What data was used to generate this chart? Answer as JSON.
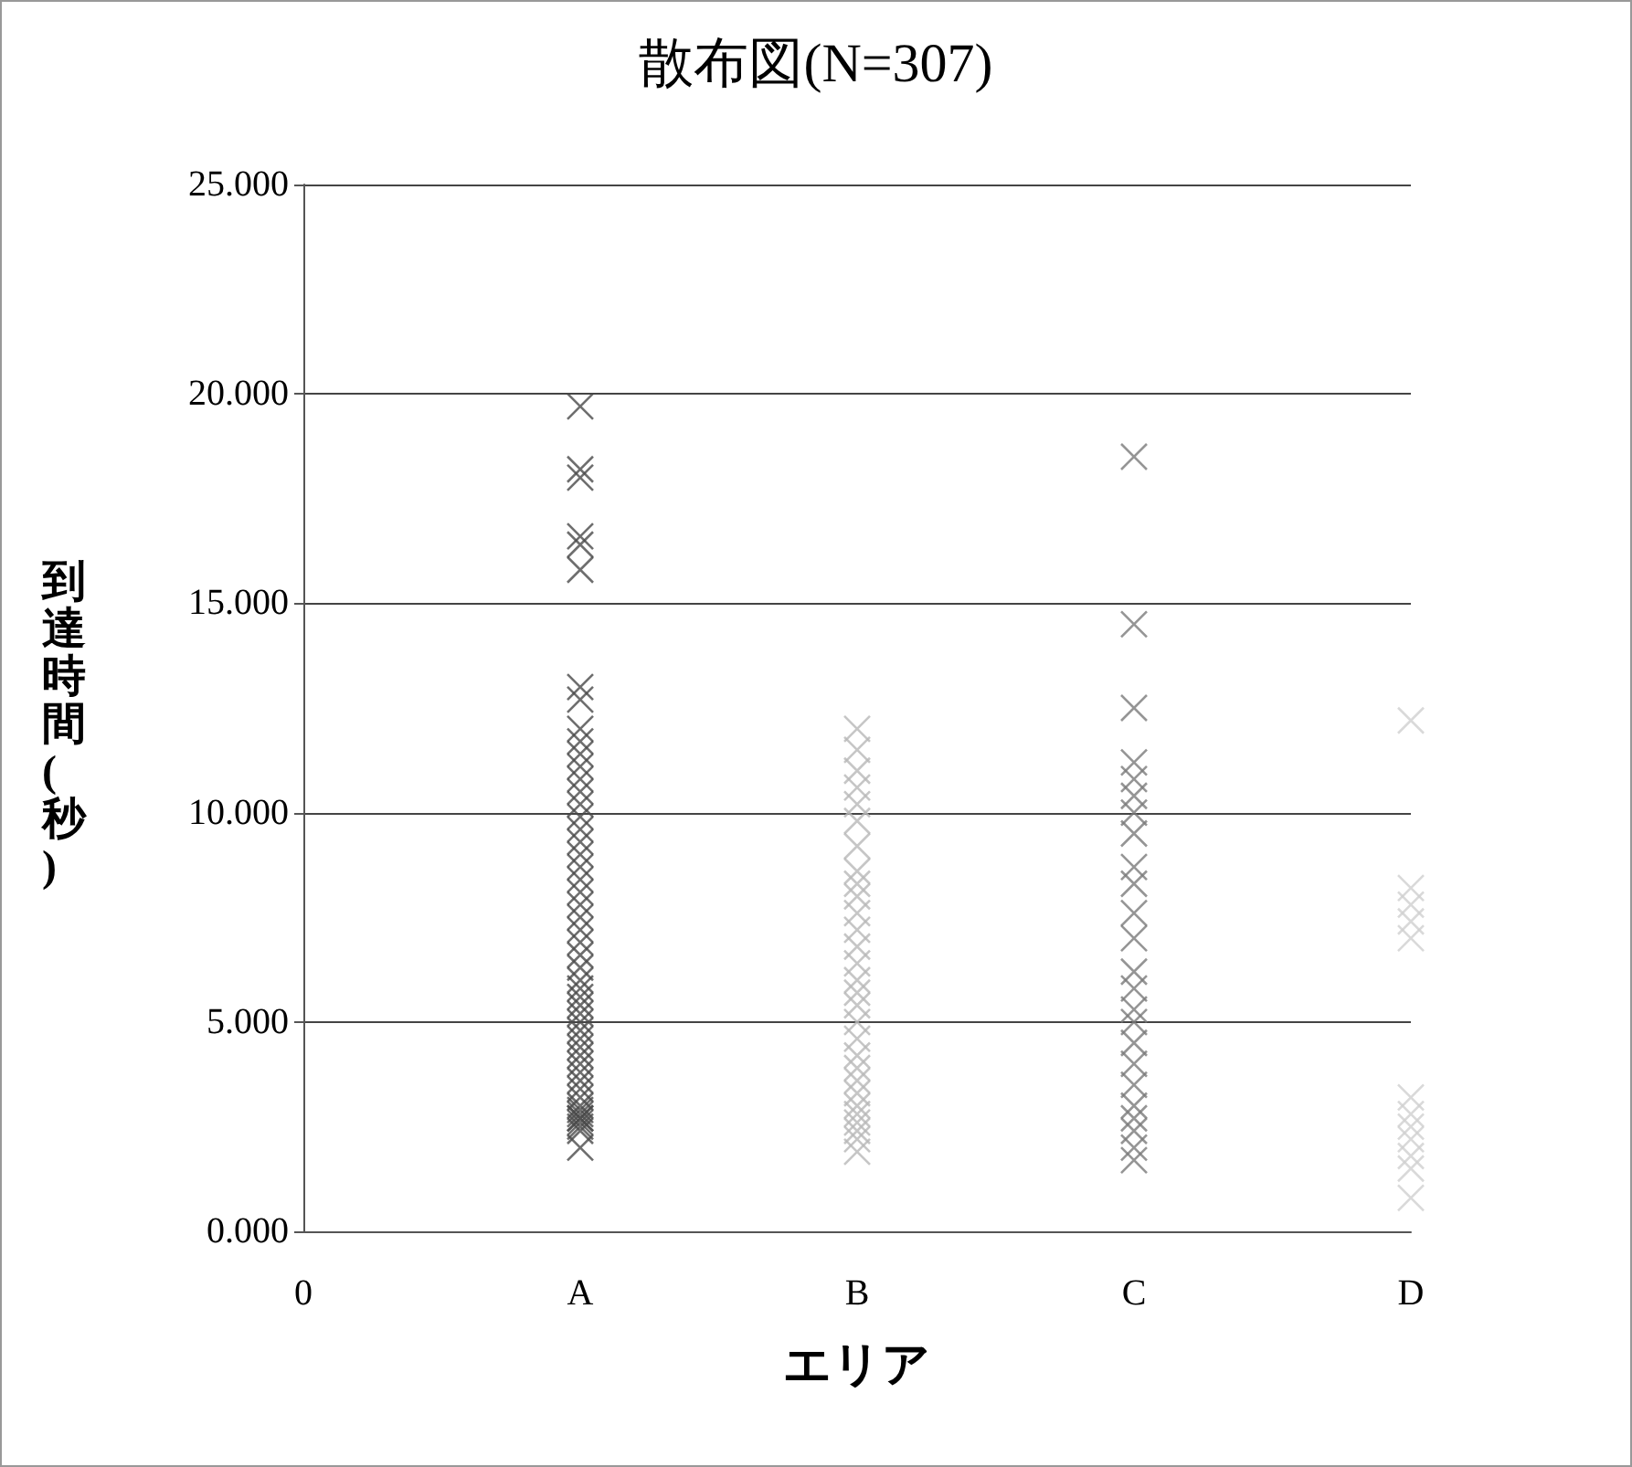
{
  "chart_data": {
    "type": "scatter",
    "title": "散布図(N=307)",
    "xlabel": "エリア",
    "ylabel": "到達時間(秒)",
    "categories": [
      "0",
      "A",
      "B",
      "C",
      "D"
    ],
    "ylim": [
      0,
      25
    ],
    "yticks": [
      {
        "value": 0,
        "label": "0.000"
      },
      {
        "value": 5,
        "label": "5.000"
      },
      {
        "value": 10,
        "label": "10.000"
      },
      {
        "value": 15,
        "label": "15.000"
      },
      {
        "value": 20,
        "label": "20.000"
      },
      {
        "value": 25,
        "label": "25.000"
      }
    ],
    "grid": "y",
    "marker": "cross",
    "series": [
      {
        "color": "#4a4a4a",
        "x": [
          "A",
          "A",
          "A",
          "A",
          "A",
          "A",
          "A",
          "A",
          "A",
          "A",
          "A",
          "A",
          "A",
          "A",
          "A",
          "A",
          "A",
          "A",
          "A",
          "A",
          "A",
          "A",
          "A",
          "A",
          "A",
          "A",
          "A",
          "A",
          "A",
          "A",
          "A",
          "A",
          "A",
          "A",
          "A",
          "A",
          "A",
          "A",
          "A",
          "A",
          "A",
          "A",
          "A",
          "A",
          "A",
          "A",
          "A",
          "A",
          "A",
          "A",
          "A",
          "A"
        ],
        "values": [
          19.7,
          18.2,
          18.0,
          16.6,
          16.4,
          15.8,
          13.0,
          12.7,
          12.0,
          11.7,
          11.4,
          11.1,
          10.8,
          10.5,
          10.2,
          9.9,
          9.6,
          9.3,
          9.0,
          8.7,
          8.4,
          8.1,
          7.8,
          7.5,
          7.2,
          6.9,
          6.6,
          6.3,
          6.0,
          5.8,
          5.6,
          5.4,
          5.2,
          5.0,
          4.8,
          4.6,
          4.4,
          4.2,
          4.0,
          3.8,
          3.6,
          3.4,
          3.2,
          3.0,
          2.9,
          2.8,
          2.7,
          2.6,
          2.5,
          2.4,
          2.7,
          2.0
        ]
      },
      {
        "color": "#b8b8b8",
        "x": [
          "B",
          "B",
          "B",
          "B",
          "B",
          "B",
          "B",
          "B",
          "B",
          "B",
          "B",
          "B",
          "B",
          "B",
          "B",
          "B",
          "B",
          "B",
          "B",
          "B",
          "B",
          "B",
          "B",
          "B",
          "B",
          "B",
          "B",
          "B",
          "B"
        ],
        "values": [
          12.0,
          11.5,
          11.0,
          10.6,
          10.2,
          9.8,
          9.2,
          8.6,
          8.3,
          8.0,
          7.6,
          7.2,
          6.8,
          6.4,
          6.0,
          5.7,
          5.4,
          5.0,
          4.6,
          4.2,
          3.9,
          3.6,
          3.3,
          3.0,
          2.8,
          2.6,
          2.4,
          2.2,
          1.9
        ]
      },
      {
        "color": "#7a7a7a",
        "x": [
          "C",
          "C",
          "C",
          "C",
          "C",
          "C",
          "C",
          "C",
          "C",
          "C",
          "C",
          "C",
          "C",
          "C",
          "C",
          "C",
          "C",
          "C",
          "C",
          "C",
          "C",
          "C",
          "C",
          "C"
        ],
        "values": [
          18.5,
          14.5,
          12.5,
          11.2,
          10.8,
          10.4,
          10.0,
          9.5,
          8.7,
          8.3,
          7.6,
          7.0,
          6.2,
          5.8,
          5.3,
          5.0,
          4.5,
          4.0,
          3.5,
          3.0,
          2.7,
          2.4,
          2.0,
          1.7
        ]
      },
      {
        "color": "#cfcfcf",
        "x": [
          "D",
          "D",
          "D",
          "D",
          "D",
          "D",
          "D",
          "D",
          "D",
          "D",
          "D",
          "D"
        ],
        "values": [
          12.2,
          8.2,
          7.8,
          7.4,
          7.0,
          3.2,
          2.8,
          2.5,
          2.2,
          1.8,
          1.5,
          0.8
        ]
      }
    ]
  }
}
